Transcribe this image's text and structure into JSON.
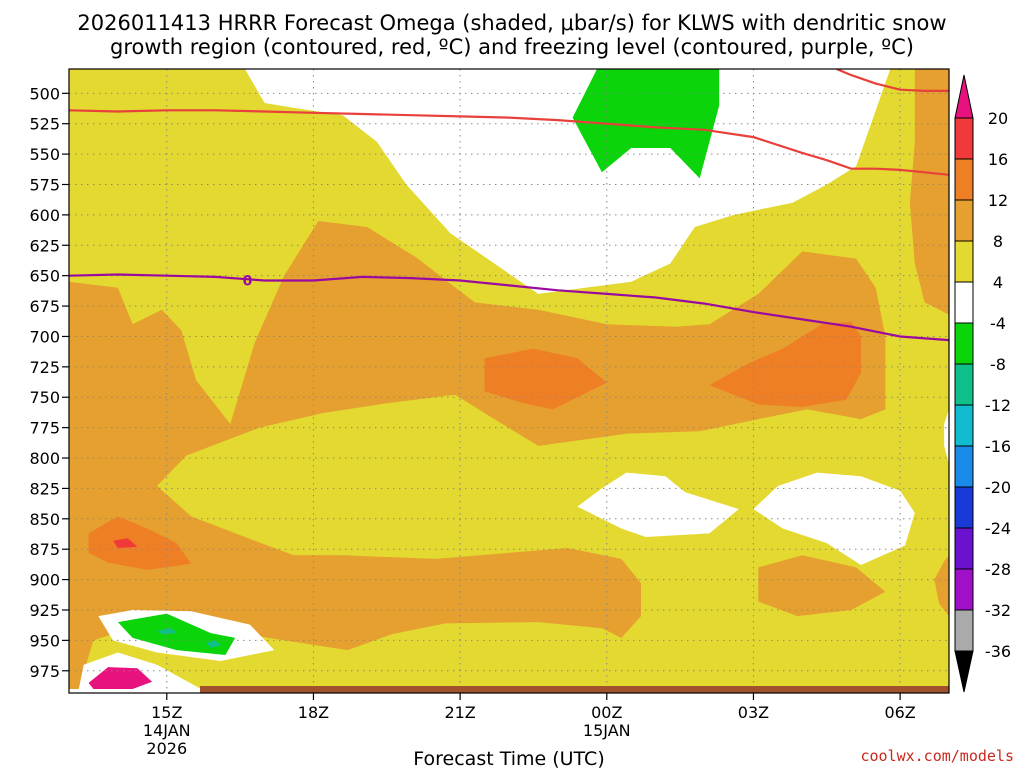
{
  "title_line1": "2026011413 HRRR Forecast Omega (shaded, μbar/s) for KLWS with dendritic snow",
  "title_line2": "growth region (contoured, red, ºC) and freezing level (contoured, purple, ºC)",
  "credit": "coolwx.com/models",
  "colors": {
    "ground": "#a0522d",
    "dendritic_line": "#e8403a",
    "freezing_line": "#9a0aa0",
    "grid": "#888888"
  },
  "chart_data": {
    "type": "heatmap",
    "title": "2026011413 HRRR Forecast Omega (shaded, μbar/s) for KLWS with dendritic snow growth region (contoured, red, ºC) and freezing level (contoured, purple, ºC)",
    "xlabel": "Forecast Time (UTC)",
    "ylabel": "",
    "x_range_hours_utc": [
      13.0,
      31.0
    ],
    "y_range_mb": [
      480,
      990
    ],
    "y_axis": "pressure (mb), increasing downward",
    "yticks": [
      500,
      525,
      550,
      575,
      600,
      625,
      650,
      675,
      700,
      725,
      750,
      775,
      800,
      825,
      850,
      875,
      900,
      925,
      950,
      975
    ],
    "xticks": [
      {
        "hour": 15,
        "lines": [
          "15Z",
          "14JAN",
          "2026"
        ]
      },
      {
        "hour": 18,
        "lines": [
          "18Z"
        ]
      },
      {
        "hour": 21,
        "lines": [
          "21Z"
        ]
      },
      {
        "hour": 24,
        "lines": [
          "00Z",
          "15JAN"
        ]
      },
      {
        "hour": 27,
        "lines": [
          "03Z"
        ]
      },
      {
        "hour": 30,
        "lines": [
          "06Z"
        ]
      }
    ],
    "colorbar": {
      "label_values": [
        20,
        16,
        12,
        8,
        4,
        -4,
        -8,
        -12,
        -16,
        -20,
        -24,
        -28,
        -32,
        -36
      ],
      "bins": [
        {
          "range": "> 20",
          "color": "#e8127f"
        },
        {
          "range": "16 to 20",
          "color": "#f03a3a"
        },
        {
          "range": "12 to 16",
          "color": "#ef7f25"
        },
        {
          "range": "8 to 12",
          "color": "#e5a030"
        },
        {
          "range": "4 to 8",
          "color": "#e4d930"
        },
        {
          "range": "-4 to 4",
          "color": "#ffffff"
        },
        {
          "range": "-8 to -4",
          "color": "#0bd40b"
        },
        {
          "range": "-12 to -8",
          "color": "#10c08a"
        },
        {
          "range": "-16 to -12",
          "color": "#12bcd0"
        },
        {
          "range": "-20 to -16",
          "color": "#1a8ae8"
        },
        {
          "range": "-24 to -20",
          "color": "#1a3ad8"
        },
        {
          "range": "-28 to -24",
          "color": "#6a12d0"
        },
        {
          "range": "-32 to -28",
          "color": "#a010c8"
        },
        {
          "range": "-36 to -32",
          "color": "#aaaaaa"
        },
        {
          "range": "< -36",
          "color": "#000000"
        }
      ]
    },
    "shaded_regions": [
      {
        "name": "yellow-background",
        "omega_bin": "4 to 8",
        "color": "#e4d930",
        "points": [
          [
            13,
            480
          ],
          [
            31,
            480
          ],
          [
            31,
            990
          ],
          [
            13,
            990
          ]
        ]
      },
      {
        "name": "white-upper-center",
        "omega_bin": "-4 to 4",
        "color": "#ffffff",
        "points": [
          [
            16.5,
            480
          ],
          [
            29.8,
            480
          ],
          [
            29.1,
            560
          ],
          [
            28.5,
            575
          ],
          [
            27.8,
            590
          ],
          [
            26.6,
            600
          ],
          [
            25.8,
            610
          ],
          [
            25.3,
            640
          ],
          [
            24.5,
            655
          ],
          [
            22.6,
            665
          ],
          [
            21.7,
            640
          ],
          [
            20.8,
            615
          ],
          [
            19.9,
            575
          ],
          [
            19.3,
            540
          ],
          [
            18.6,
            518
          ],
          [
            17.6,
            512
          ],
          [
            17.0,
            508
          ],
          [
            16.6,
            480
          ]
        ]
      },
      {
        "name": "green-upper",
        "omega_bin": "-8 to -4",
        "color": "#0bd40b",
        "points": [
          [
            23.8,
            480
          ],
          [
            26.3,
            480
          ],
          [
            26.3,
            510
          ],
          [
            25.9,
            570
          ],
          [
            25.3,
            545
          ],
          [
            24.5,
            545
          ],
          [
            23.9,
            565
          ],
          [
            23.3,
            520
          ]
        ]
      },
      {
        "name": "white-right-edge",
        "omega_bin": "-4 to 4",
        "color": "#ffffff",
        "points": [
          [
            31,
            760
          ],
          [
            30.9,
            772
          ],
          [
            30.9,
            790
          ],
          [
            31,
            805
          ]
        ]
      },
      {
        "name": "white-mid-850-left",
        "omega_bin": "-4 to 4",
        "color": "#ffffff",
        "points": [
          [
            23.4,
            840
          ],
          [
            23.9,
            825
          ],
          [
            24.4,
            812
          ],
          [
            25.2,
            815
          ],
          [
            25.6,
            828
          ],
          [
            26.7,
            842
          ],
          [
            26.1,
            862
          ],
          [
            24.8,
            865
          ],
          [
            24.3,
            858
          ]
        ]
      },
      {
        "name": "white-mid-850-right",
        "omega_bin": "-4 to 4",
        "color": "#ffffff",
        "points": [
          [
            27.0,
            842
          ],
          [
            27.5,
            823
          ],
          [
            28.3,
            812
          ],
          [
            29.2,
            815
          ],
          [
            30.0,
            827
          ],
          [
            30.3,
            845
          ],
          [
            30.1,
            872
          ],
          [
            29.2,
            888
          ],
          [
            28.5,
            870
          ],
          [
            27.6,
            858
          ]
        ]
      },
      {
        "name": "orange-main",
        "omega_bin": "8 to 12",
        "color": "#e5a030",
        "points": [
          [
            13,
            655
          ],
          [
            14,
            660
          ],
          [
            14.3,
            690
          ],
          [
            14.9,
            678
          ],
          [
            15.3,
            695
          ],
          [
            15.6,
            736
          ],
          [
            16.3,
            772
          ],
          [
            16.8,
            705
          ],
          [
            17.4,
            650
          ],
          [
            18.1,
            605
          ],
          [
            19.1,
            610
          ],
          [
            20.1,
            635
          ],
          [
            21.3,
            672
          ],
          [
            22.6,
            678
          ],
          [
            24.0,
            690
          ],
          [
            25.4,
            692
          ],
          [
            26.1,
            690
          ],
          [
            27.1,
            665
          ],
          [
            28.0,
            630
          ],
          [
            29.1,
            636
          ],
          [
            29.5,
            660
          ],
          [
            29.7,
            700
          ],
          [
            29.7,
            760
          ],
          [
            29.2,
            768
          ],
          [
            28.1,
            760
          ],
          [
            27.1,
            768
          ],
          [
            25.9,
            778
          ],
          [
            24.4,
            780
          ],
          [
            22.6,
            790
          ],
          [
            21.7,
            768
          ],
          [
            20.9,
            748
          ],
          [
            19.5,
            755
          ],
          [
            18.2,
            763
          ],
          [
            16.9,
            775
          ],
          [
            15.4,
            798
          ],
          [
            14.8,
            823
          ],
          [
            15.5,
            848
          ],
          [
            16.8,
            868
          ],
          [
            17.6,
            880
          ],
          [
            18.6,
            880
          ],
          [
            20.5,
            883
          ],
          [
            23.2,
            874
          ],
          [
            24.3,
            883
          ],
          [
            24.7,
            903
          ],
          [
            24.7,
            930
          ],
          [
            24.3,
            948
          ],
          [
            23.9,
            940
          ],
          [
            22.6,
            935
          ],
          [
            20.7,
            936
          ],
          [
            19.6,
            945
          ],
          [
            18.7,
            958
          ],
          [
            16.6,
            945
          ],
          [
            15.4,
            940
          ],
          [
            14.1,
            942
          ],
          [
            13.5,
            950
          ],
          [
            13.2,
            990
          ],
          [
            13,
            990
          ]
        ]
      },
      {
        "name": "orange-lower-right",
        "omega_bin": "8 to 12",
        "color": "#e5a030",
        "points": [
          [
            27.1,
            890
          ],
          [
            28.0,
            880
          ],
          [
            29.1,
            890
          ],
          [
            29.7,
            910
          ],
          [
            29.0,
            925
          ],
          [
            27.9,
            930
          ],
          [
            27.1,
            918
          ]
        ]
      },
      {
        "name": "orange-right-column",
        "omega_bin": "8 to 12",
        "color": "#e5a030",
        "points": [
          [
            30.3,
            480
          ],
          [
            31,
            480
          ],
          [
            31,
            682
          ],
          [
            30.5,
            672
          ],
          [
            30.3,
            640
          ],
          [
            30.2,
            590
          ],
          [
            30.3,
            540
          ]
        ]
      },
      {
        "name": "orange-right-bottom",
        "omega_bin": "8 to 12",
        "color": "#e5a030",
        "points": [
          [
            30.7,
            900
          ],
          [
            30.9,
            885
          ],
          [
            31,
            880
          ],
          [
            31,
            930
          ],
          [
            30.8,
            920
          ]
        ]
      },
      {
        "name": "white-lower-left-band",
        "omega_bin": "-4 to 4",
        "color": "#ffffff",
        "points": [
          [
            13.6,
            930
          ],
          [
            14.3,
            925
          ],
          [
            15.5,
            926
          ],
          [
            16.7,
            937
          ],
          [
            17.2,
            958
          ],
          [
            16.1,
            967
          ],
          [
            14.8,
            960
          ],
          [
            13.9,
            950
          ]
        ]
      },
      {
        "name": "green-lower-left",
        "omega_bin": "-8 to -4",
        "color": "#0bd40b",
        "points": [
          [
            14.0,
            935
          ],
          [
            15.0,
            928
          ],
          [
            15.9,
            944
          ],
          [
            16.4,
            948
          ],
          [
            16.2,
            962
          ],
          [
            15.2,
            958
          ],
          [
            14.3,
            948
          ]
        ]
      },
      {
        "name": "teal-dot-1",
        "omega_bin": "-12 to -8",
        "color": "#10c08a",
        "points": [
          [
            14.8,
            942
          ],
          [
            15.1,
            940
          ],
          [
            15.2,
            944
          ],
          [
            14.9,
            945
          ]
        ]
      },
      {
        "name": "teal-dot-2",
        "omega_bin": "-12 to -8",
        "color": "#10c08a",
        "points": [
          [
            15.8,
            952
          ],
          [
            16.0,
            950
          ],
          [
            16.1,
            954
          ],
          [
            15.9,
            956
          ]
        ]
      },
      {
        "name": "dark-orange-left",
        "omega_bin": "12 to 16",
        "color": "#ef7f25",
        "points": [
          [
            13.4,
            862
          ],
          [
            14.0,
            848
          ],
          [
            14.6,
            858
          ],
          [
            15.2,
            870
          ],
          [
            15.5,
            887
          ],
          [
            14.6,
            892
          ],
          [
            13.8,
            886
          ],
          [
            13.4,
            878
          ]
        ]
      },
      {
        "name": "red-spot-left",
        "omega_bin": "16 to 20",
        "color": "#f03a3a",
        "points": [
          [
            13.9,
            868
          ],
          [
            14.2,
            866
          ],
          [
            14.4,
            873
          ],
          [
            14.0,
            874
          ]
        ]
      },
      {
        "name": "dark-orange-center",
        "omega_bin": "12 to 16",
        "color": "#ef7f25",
        "points": [
          [
            21.5,
            718
          ],
          [
            22.5,
            710
          ],
          [
            23.4,
            718
          ],
          [
            24.0,
            738
          ],
          [
            23.5,
            748
          ],
          [
            22.9,
            760
          ],
          [
            22.3,
            755
          ],
          [
            21.5,
            745
          ]
        ]
      },
      {
        "name": "dark-orange-right",
        "omega_bin": "12 to 16",
        "color": "#ef7f25",
        "points": [
          [
            26.1,
            740
          ],
          [
            26.9,
            722
          ],
          [
            27.6,
            710
          ],
          [
            28.4,
            690
          ],
          [
            29.0,
            688
          ],
          [
            29.2,
            700
          ],
          [
            29.2,
            730
          ],
          [
            28.9,
            752
          ],
          [
            28.0,
            758
          ],
          [
            27.1,
            756
          ]
        ]
      },
      {
        "name": "white-bottom-left",
        "omega_bin": "-4 to 4",
        "color": "#ffffff",
        "points": [
          [
            13.2,
            990
          ],
          [
            13.3,
            970
          ],
          [
            14.0,
            960
          ],
          [
            14.8,
            970
          ],
          [
            15.7,
            990
          ]
        ]
      },
      {
        "name": "magenta-bottom-left",
        "omega_bin": "> 20",
        "color": "#e8127f",
        "points": [
          [
            13.4,
            985
          ],
          [
            13.8,
            972
          ],
          [
            14.4,
            973
          ],
          [
            14.7,
            984
          ],
          [
            14.3,
            990
          ],
          [
            13.5,
            990
          ]
        ]
      }
    ],
    "dendritic_snow_growth_top_mb": {
      "name": "dendritic growth contour (upper)",
      "color": "#e8403a",
      "x": [
        13.0,
        14.0,
        15.0,
        16.0,
        17.0,
        18.0,
        19.0,
        20.0,
        21.0,
        22.0,
        23.0,
        24.0,
        25.0,
        26.0,
        27.0,
        28.0,
        28.5,
        29.0,
        29.5,
        30.0,
        30.5,
        31.0
      ],
      "y": [
        514,
        515,
        514,
        514,
        515,
        516,
        517,
        518,
        519,
        520,
        522,
        525,
        528,
        530,
        536,
        549,
        555,
        562,
        562,
        563,
        565,
        567
      ]
    },
    "dendritic_snow_growth_upper_right_mb": {
      "name": "dendritic growth contour (top right)",
      "color": "#e8403a",
      "x": [
        28.7,
        29.0,
        29.5,
        30.0,
        30.5,
        31.0
      ],
      "y": [
        480,
        485,
        492,
        497,
        498,
        498
      ]
    },
    "freezing_level_mb": {
      "name": "0 ºC isotherm",
      "label": "0",
      "color": "#9a0aa0",
      "x": [
        13.0,
        14.0,
        15.0,
        16.0,
        17.0,
        18.0,
        19.0,
        20.0,
        21.0,
        22.0,
        23.0,
        24.0,
        25.0,
        26.0,
        27.0,
        28.0,
        29.0,
        30.0,
        31.0
      ],
      "y": [
        650,
        649,
        650,
        651,
        654,
        654,
        651,
        652,
        654,
        658,
        662,
        665,
        668,
        673,
        680,
        686,
        692,
        700,
        703
      ]
    }
  }
}
